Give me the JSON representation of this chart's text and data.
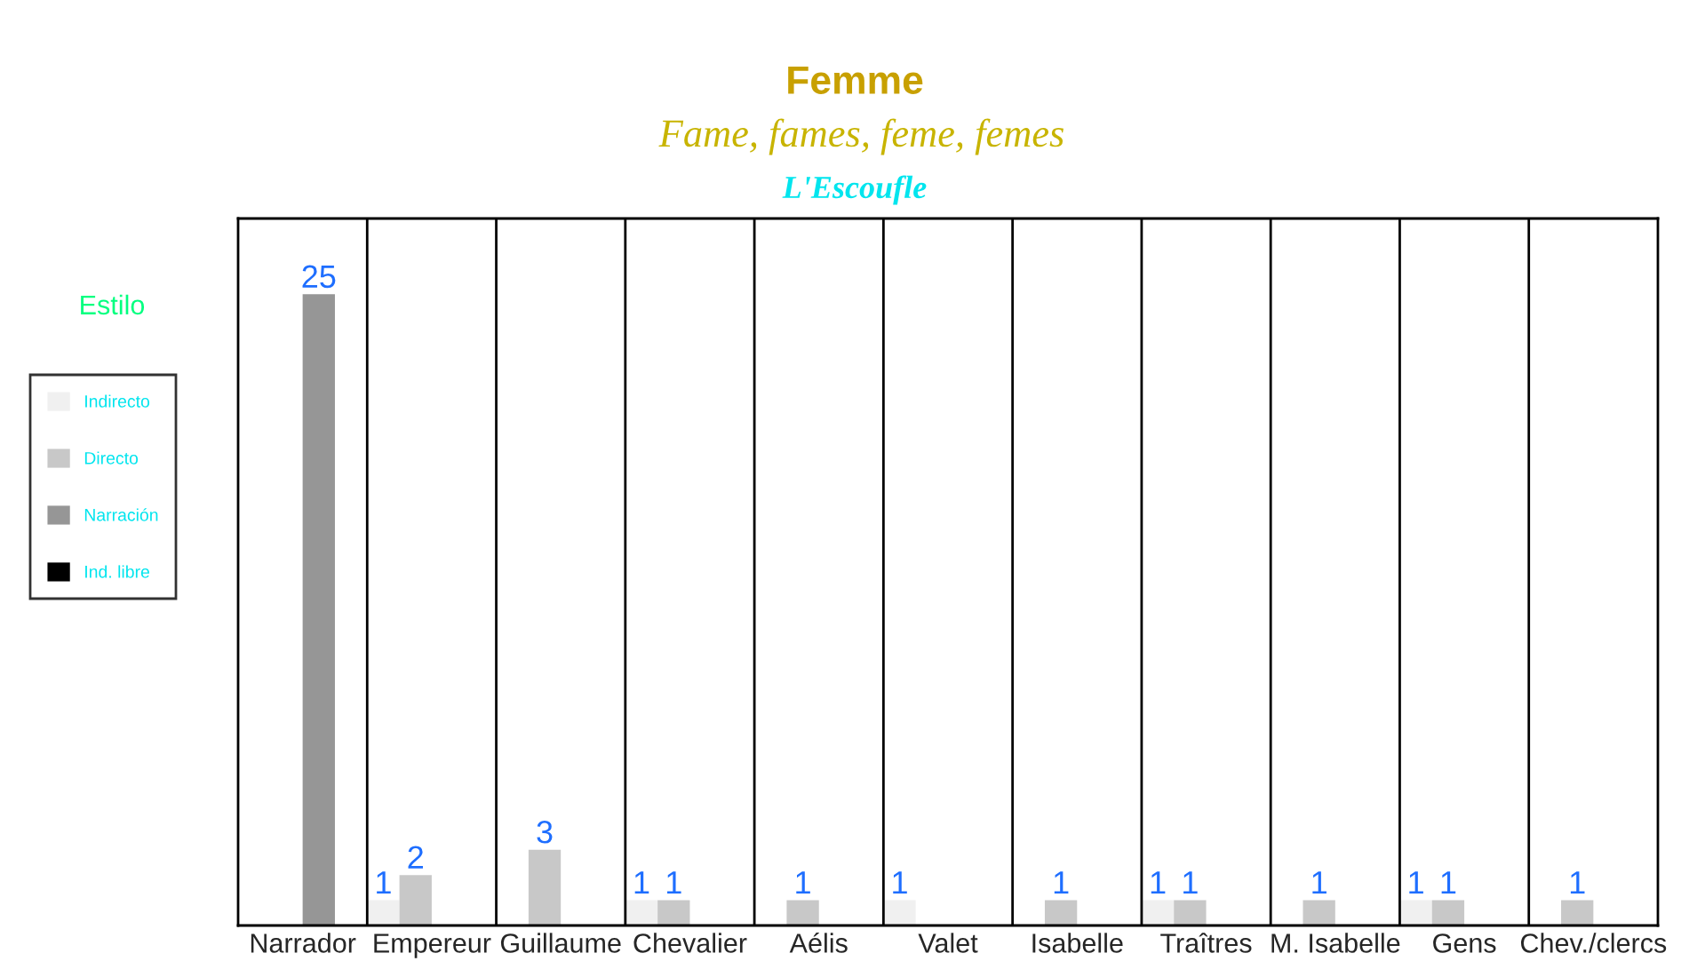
{
  "chart_data": {
    "type": "bar",
    "title": "Femme",
    "subtitle": "Fame, fames, feme, femes",
    "annotations": [
      "L'Escoufle"
    ],
    "legend_title": "Estilo",
    "legend": "left",
    "categories": [
      "Narrador",
      "Empereur",
      "Guillaume",
      "Chevalier",
      "Aélis",
      "Valet",
      "Isabelle",
      "Traîtres",
      "M. Isabelle",
      "Gens",
      "Chev./clercs"
    ],
    "series": [
      {
        "name": "Indirecto",
        "color": "#f0f0f0",
        "values": [
          null,
          1,
          null,
          1,
          null,
          1,
          null,
          1,
          null,
          1,
          null
        ]
      },
      {
        "name": "Directo",
        "color": "#c8c8c8",
        "values": [
          null,
          2,
          3,
          1,
          1,
          null,
          1,
          1,
          1,
          1,
          1
        ]
      },
      {
        "name": "Narración",
        "color": "#969696",
        "values": [
          25,
          null,
          null,
          null,
          null,
          null,
          null,
          null,
          null,
          null,
          null
        ]
      },
      {
        "name": "Ind. libre",
        "color": "#000000",
        "values": [
          null,
          null,
          null,
          null,
          null,
          null,
          null,
          null,
          null,
          null,
          null
        ]
      }
    ],
    "ylim": [
      0,
      28
    ],
    "tick_labels": "x",
    "data_labels": true
  }
}
